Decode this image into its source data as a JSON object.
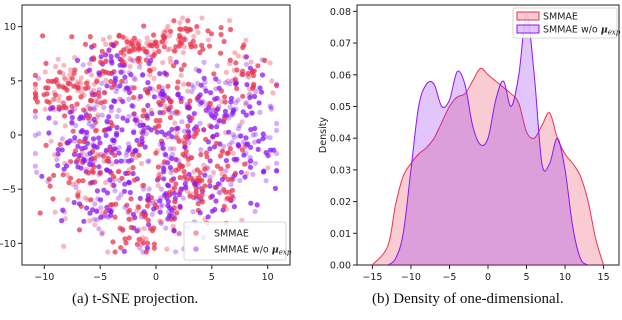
{
  "captions": {
    "a": "(a)  t-SNE projection.",
    "b": "(b)  Density of one-dimensional."
  },
  "colors": {
    "smmae": "#e8354f",
    "wo": "#8a17f0"
  },
  "chart_data": [
    {
      "type": "scatter",
      "title": "",
      "xlabel": "",
      "ylabel": "",
      "xlim": [
        -12,
        12
      ],
      "ylim": [
        -12,
        12
      ],
      "xticks": [
        "−10",
        "−5",
        "0",
        "5",
        "10"
      ],
      "yticks": [
        "10",
        "5",
        "0",
        "−5",
        "−10"
      ],
      "grid": false,
      "legend_position": "bottom-right",
      "series": [
        {
          "name": "SMMAE",
          "color": "#e8354f",
          "clusters": [
            {
              "cx": -7.5,
              "cy": 4.0,
              "sx": 2.0,
              "sy": 1.2,
              "n": 110
            },
            {
              "cx": -2.5,
              "cy": 8.0,
              "sx": 2.2,
              "sy": 1.0,
              "n": 80
            },
            {
              "cx": 2.5,
              "cy": 9.0,
              "sx": 2.0,
              "sy": 0.9,
              "n": 70
            },
            {
              "cx": -6.0,
              "cy": -3.5,
              "sx": 2.2,
              "sy": 2.0,
              "n": 90
            },
            {
              "cx": 4.0,
              "cy": -4.5,
              "sx": 2.5,
              "sy": 2.2,
              "n": 110
            },
            {
              "cx": -1.0,
              "cy": -8.0,
              "sx": 2.0,
              "sy": 1.4,
              "n": 60
            },
            {
              "cx": 1.0,
              "cy": 1.5,
              "sx": 3.0,
              "sy": 3.0,
              "n": 120
            },
            {
              "cx": 8.0,
              "cy": 5.5,
              "sx": 1.5,
              "sy": 1.5,
              "n": 40
            }
          ]
        },
        {
          "name": "SMMAE w/o",
          "color": "#8a17f0",
          "clusters": [
            {
              "cx": -6.5,
              "cy": -0.5,
              "sx": 2.2,
              "sy": 2.0,
              "n": 110
            },
            {
              "cx": 6.0,
              "cy": 2.5,
              "sx": 2.5,
              "sy": 2.2,
              "n": 120
            },
            {
              "cx": 0.0,
              "cy": -1.0,
              "sx": 3.2,
              "sy": 3.0,
              "n": 140
            },
            {
              "cx": -3.0,
              "cy": 5.0,
              "sx": 2.0,
              "sy": 1.5,
              "n": 70
            },
            {
              "cx": 2.0,
              "cy": -6.5,
              "sx": 2.5,
              "sy": 1.8,
              "n": 80
            },
            {
              "cx": 8.5,
              "cy": -2.0,
              "sx": 1.5,
              "sy": 1.8,
              "n": 50
            },
            {
              "cx": -4.5,
              "cy": -7.0,
              "sx": 1.5,
              "sy": 1.5,
              "n": 40
            }
          ]
        }
      ]
    },
    {
      "type": "area",
      "title": "",
      "xlabel": "",
      "ylabel": "Density",
      "xlim": [
        -17,
        17
      ],
      "ylim": [
        0,
        0.082
      ],
      "xticks": [
        "−15",
        "−10",
        "−5",
        "0",
        "5",
        "10",
        "15"
      ],
      "yticks": [
        "0.00",
        "0.01",
        "0.02",
        "0.03",
        "0.04",
        "0.05",
        "0.06",
        "0.07",
        "0.08"
      ],
      "grid": false,
      "legend_position": "top-right",
      "series": [
        {
          "name": "SMMAE",
          "color": "#e8354f",
          "x": [
            -15,
            -13,
            -12,
            -11,
            -10,
            -9,
            -8,
            -7,
            -6,
            -5,
            -4,
            -3,
            -2,
            -1,
            0,
            1,
            2,
            3,
            4,
            5,
            6,
            7,
            8,
            9,
            10,
            11,
            12,
            13,
            14,
            15
          ],
          "y": [
            0,
            0.006,
            0.019,
            0.028,
            0.032,
            0.035,
            0.037,
            0.04,
            0.045,
            0.05,
            0.053,
            0.054,
            0.058,
            0.062,
            0.06,
            0.058,
            0.056,
            0.054,
            0.051,
            0.042,
            0.04,
            0.044,
            0.048,
            0.04,
            0.035,
            0.032,
            0.028,
            0.02,
            0.008,
            0
          ]
        },
        {
          "name": "SMMAE w/o",
          "color": "#8a17f0",
          "x": [
            -13,
            -12,
            -11,
            -10,
            -9,
            -8,
            -7,
            -6,
            -5,
            -4,
            -3,
            -2,
            -1,
            0,
            1,
            2,
            3,
            4,
            5,
            6,
            7,
            8,
            9,
            10,
            11,
            12,
            13
          ],
          "y": [
            0,
            0.002,
            0.01,
            0.03,
            0.05,
            0.057,
            0.057,
            0.05,
            0.052,
            0.061,
            0.057,
            0.044,
            0.038,
            0.04,
            0.052,
            0.058,
            0.05,
            0.06,
            0.079,
            0.06,
            0.032,
            0.032,
            0.04,
            0.03,
            0.012,
            0.002,
            0
          ]
        }
      ]
    }
  ]
}
